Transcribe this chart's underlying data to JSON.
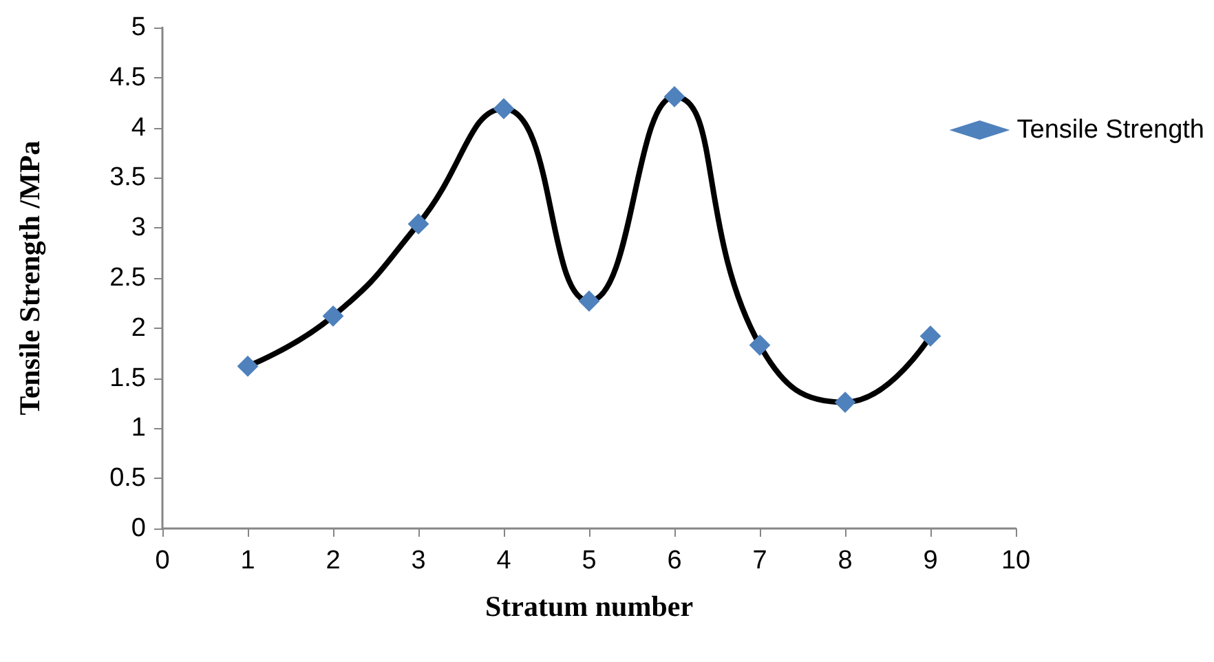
{
  "chart_data": {
    "type": "line",
    "xlabel": "Stratum number",
    "ylabel": "Tensile Strength /MPa",
    "x": [
      1,
      2,
      3,
      4,
      5,
      6,
      7,
      8,
      9
    ],
    "series": [
      {
        "name": "Tensile Strength",
        "color": "#4f81bd",
        "values": [
          1.62,
          2.12,
          3.04,
          4.19,
          2.27,
          4.31,
          1.83,
          1.26,
          1.92
        ]
      }
    ],
    "xlim": [
      0,
      10
    ],
    "xticks": [
      0,
      1,
      2,
      3,
      4,
      5,
      6,
      7,
      8,
      9,
      10
    ],
    "ylim": [
      0,
      5
    ],
    "yticks": [
      0,
      0.5,
      1,
      1.5,
      2,
      2.5,
      3,
      3.5,
      4,
      4.5,
      5
    ],
    "grid": false,
    "legend": "top right",
    "marker": "diamond",
    "line_style": "solid"
  }
}
